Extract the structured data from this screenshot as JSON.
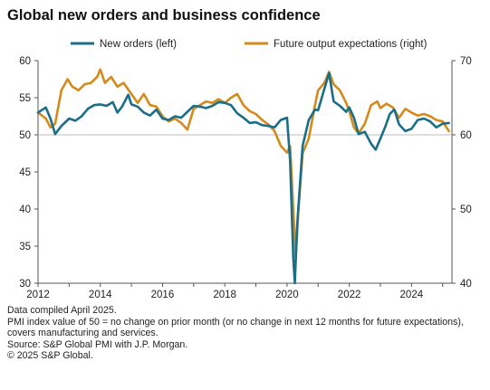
{
  "title": "Global new orders and business confidence",
  "notes": {
    "compiled": "Data compiled April 2025.",
    "definition": "PMI index value of 50 = no change on prior month (or no change in next 12 months for future expectations), covers manufacturing and services.",
    "source": "Source: S&P Global PMI with J.P. Morgan.",
    "copyright": "© 2025 S&P Global."
  },
  "chart_data": {
    "type": "line",
    "title": "Global new orders and business confidence",
    "xlabel": "",
    "ylabel_left": "",
    "ylabel_right": "",
    "xlim": [
      2012,
      2025.3
    ],
    "ylim_left": [
      30,
      60
    ],
    "ylim_right": [
      40,
      70
    ],
    "x_ticks": [
      "2012",
      "2014",
      "2016",
      "2018",
      "2020",
      "2022",
      "2024"
    ],
    "y_ticks_left": [
      "30",
      "35",
      "40",
      "45",
      "50",
      "55",
      "60"
    ],
    "y_ticks_right": [
      "40",
      "50",
      "60",
      "70"
    ],
    "reference_line_left": 50,
    "legend_position": "top",
    "colors": {
      "new_orders": "#1a6e87",
      "future_output": "#d58a1c",
      "reference": "#bdbdbd"
    },
    "series": [
      {
        "name": "New orders (left)",
        "axis": "left",
        "x": [
          2012.0,
          2012.25,
          2012.4,
          2012.55,
          2012.75,
          2013.0,
          2013.2,
          2013.4,
          2013.6,
          2013.8,
          2014.0,
          2014.2,
          2014.4,
          2014.55,
          2014.7,
          2014.9,
          2015.0,
          2015.2,
          2015.4,
          2015.6,
          2015.8,
          2016.0,
          2016.2,
          2016.4,
          2016.6,
          2016.8,
          2017.0,
          2017.2,
          2017.4,
          2017.6,
          2017.8,
          2018.0,
          2018.2,
          2018.4,
          2018.6,
          2018.8,
          2019.0,
          2019.2,
          2019.4,
          2019.6,
          2019.8,
          2020.0,
          2020.1,
          2020.2,
          2020.25,
          2020.33,
          2020.5,
          2020.7,
          2020.9,
          2021.0,
          2021.2,
          2021.35,
          2021.5,
          2021.7,
          2021.9,
          2022.0,
          2022.15,
          2022.3,
          2022.5,
          2022.7,
          2022.85,
          2023.0,
          2023.15,
          2023.3,
          2023.45,
          2023.6,
          2023.8,
          2024.0,
          2024.2,
          2024.4,
          2024.6,
          2024.8,
          2025.0,
          2025.2
        ],
        "y": [
          53.0,
          53.7,
          52.2,
          50.1,
          51.2,
          52.2,
          51.9,
          52.5,
          53.5,
          54.0,
          54.1,
          53.9,
          54.4,
          53.0,
          53.8,
          55.4,
          54.1,
          53.8,
          53.0,
          52.6,
          53.4,
          52.2,
          52.0,
          52.5,
          52.3,
          53.1,
          53.9,
          53.8,
          53.6,
          53.9,
          54.4,
          54.3,
          54.0,
          52.9,
          52.3,
          51.6,
          51.7,
          51.3,
          51.2,
          51.0,
          52.0,
          52.3,
          46.5,
          33.4,
          30.0,
          38.0,
          48.5,
          52.0,
          53.4,
          53.3,
          56.2,
          58.3,
          54.5,
          53.9,
          53.1,
          53.7,
          52.3,
          50.1,
          50.4,
          48.8,
          48.0,
          49.5,
          51.0,
          52.8,
          53.4,
          51.4,
          50.5,
          50.8,
          52.0,
          52.2,
          51.8,
          51.0,
          51.5,
          51.6
        ]
      },
      {
        "name": "Future output expectations (right)",
        "axis": "right",
        "x": [
          2012.0,
          2012.25,
          2012.4,
          2012.55,
          2012.75,
          2012.95,
          2013.1,
          2013.3,
          2013.5,
          2013.7,
          2013.9,
          2014.0,
          2014.15,
          2014.35,
          2014.55,
          2014.75,
          2015.0,
          2015.2,
          2015.4,
          2015.6,
          2015.8,
          2016.0,
          2016.2,
          2016.4,
          2016.6,
          2016.8,
          2017.0,
          2017.2,
          2017.4,
          2017.6,
          2017.8,
          2018.0,
          2018.2,
          2018.4,
          2018.6,
          2018.8,
          2019.0,
          2019.2,
          2019.4,
          2019.6,
          2019.8,
          2020.0,
          2020.1,
          2020.2,
          2020.28,
          2020.36,
          2020.5,
          2020.7,
          2020.9,
          2021.0,
          2021.2,
          2021.35,
          2021.5,
          2021.7,
          2021.9,
          2022.0,
          2022.15,
          2022.3,
          2022.5,
          2022.7,
          2022.9,
          2023.0,
          2023.2,
          2023.4,
          2023.6,
          2023.8,
          2024.0,
          2024.2,
          2024.4,
          2024.6,
          2024.8,
          2025.0,
          2025.2
        ],
        "y": [
          63.0,
          62.2,
          61.0,
          61.5,
          66.0,
          67.5,
          66.5,
          66.0,
          66.8,
          67.0,
          67.8,
          68.8,
          67.0,
          67.8,
          66.5,
          67.0,
          65.5,
          64.3,
          65.5,
          64.0,
          63.8,
          62.5,
          61.8,
          62.2,
          61.6,
          60.7,
          63.5,
          64.0,
          64.5,
          64.3,
          64.8,
          64.3,
          65.0,
          65.5,
          64.0,
          63.2,
          62.8,
          62.0,
          61.4,
          60.5,
          58.5,
          57.6,
          58.5,
          50.0,
          43.5,
          49.5,
          57.5,
          59.5,
          64.0,
          66.0,
          67.0,
          68.5,
          66.8,
          66.0,
          64.3,
          63.2,
          61.0,
          60.2,
          61.5,
          64.0,
          64.5,
          63.6,
          64.2,
          63.7,
          62.3,
          63.5,
          63.0,
          62.6,
          62.8,
          62.5,
          62.0,
          61.8,
          60.5
        ]
      }
    ]
  }
}
